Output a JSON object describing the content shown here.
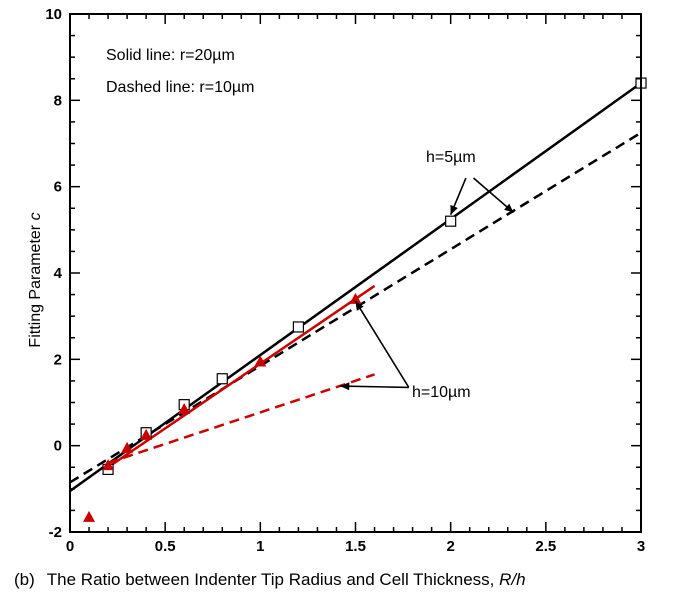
{
  "chart_data": {
    "type": "scatter",
    "xlim": [
      0,
      3
    ],
    "ylim": [
      -2,
      10
    ],
    "x_ticks": [
      "0",
      "0.5",
      "1",
      "1.5",
      "2",
      "2.5",
      "3"
    ],
    "y_ticks": [
      "-2",
      "0",
      "2",
      "4",
      "6",
      "8",
      "10"
    ],
    "ylabel": "Fitting Parameter ",
    "ylabel_italic": "c",
    "caption_prefix": "(b)",
    "caption_text": "The Ratio between Indenter Tip Radius and Cell Thickness, ",
    "caption_italic": "R/h",
    "legend": {
      "line1": "Solid line: r=20µm",
      "line2": "Dashed line: r=10µm"
    },
    "annotations": {
      "h5": "h=5µm",
      "h10": "h=10µm"
    },
    "colors": {
      "black": "#000000",
      "red": "#cc0000"
    },
    "series": [
      {
        "marker": "square",
        "color": "#000000",
        "points": [
          [
            0.2,
            -0.55
          ],
          [
            0.4,
            0.3
          ],
          [
            0.6,
            0.95
          ],
          [
            0.8,
            1.55
          ],
          [
            1.2,
            2.75
          ],
          [
            2.0,
            5.2
          ],
          [
            3.0,
            8.4
          ]
        ]
      },
      {
        "marker": "triangle",
        "color": "#cc0000",
        "points": [
          [
            0.1,
            -1.65
          ],
          [
            0.2,
            -0.45
          ],
          [
            0.3,
            -0.05
          ],
          [
            0.4,
            0.25
          ],
          [
            0.6,
            0.85
          ],
          [
            1.0,
            1.95
          ],
          [
            1.5,
            3.4
          ]
        ]
      }
    ],
    "lines": [
      {
        "style": "solid",
        "color": "#000000",
        "points": [
          [
            0.0,
            -1.05
          ],
          [
            3.0,
            8.4
          ]
        ]
      },
      {
        "style": "dashed",
        "color": "#000000",
        "points": [
          [
            0.0,
            -0.85
          ],
          [
            3.0,
            7.25
          ]
        ]
      },
      {
        "style": "solid",
        "color": "#cc0000",
        "points": [
          [
            0.2,
            -0.5
          ],
          [
            1.6,
            3.7
          ]
        ]
      },
      {
        "style": "dashed",
        "color": "#cc0000",
        "points": [
          [
            0.2,
            -0.4
          ],
          [
            1.6,
            1.65
          ]
        ]
      }
    ]
  }
}
